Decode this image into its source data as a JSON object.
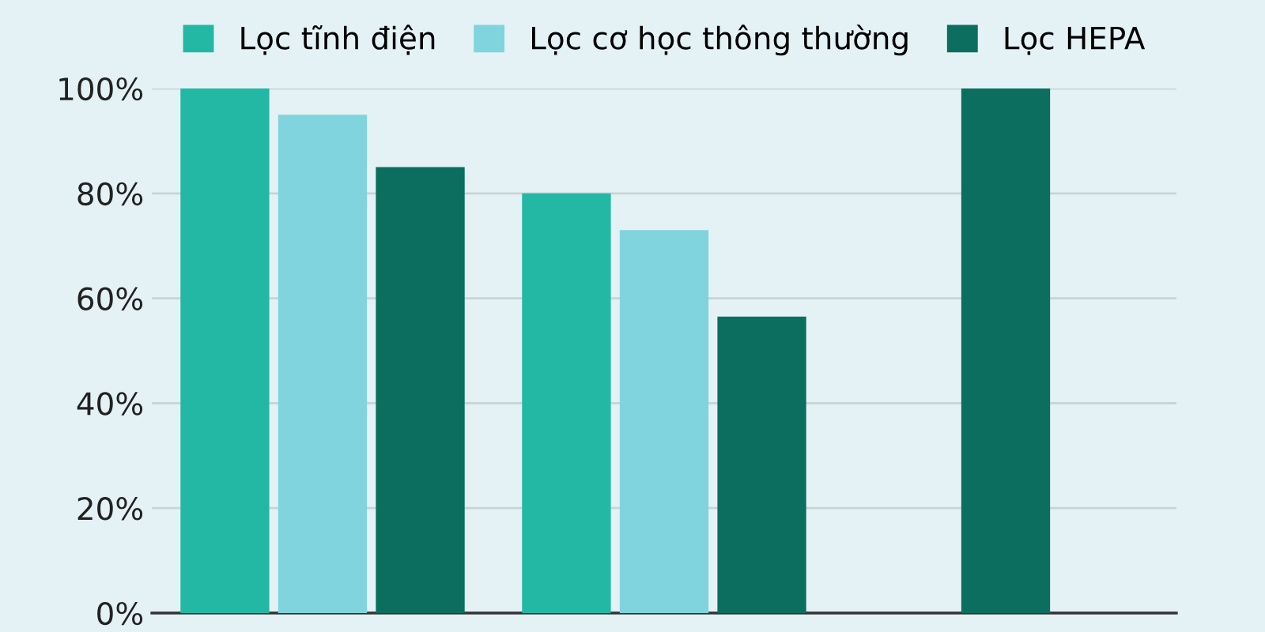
{
  "chart_data": {
    "type": "bar",
    "categories": [
      null,
      null,
      null
    ],
    "series": [
      {
        "name": "Lọc tĩnh điện",
        "color": "#22b8a4",
        "values": [
          100,
          80,
          null
        ]
      },
      {
        "name": "Lọc cơ học thông thường",
        "color": "#80d4dd",
        "values": [
          95,
          73,
          null
        ]
      },
      {
        "name": "Lọc HEPA",
        "color": "#0b6e5e",
        "values": [
          85,
          56.5,
          100
        ]
      }
    ],
    "ylim": [
      0,
      100
    ],
    "yticks": [
      {
        "value": 0,
        "label": "0%"
      },
      {
        "value": 20,
        "label": "20%"
      },
      {
        "value": 40,
        "label": "40%"
      },
      {
        "value": 60,
        "label": "60%"
      },
      {
        "value": 80,
        "label": "80%"
      },
      {
        "value": 100,
        "label": "100%"
      }
    ],
    "grid": "y",
    "legend": "top",
    "tick_labels": "y"
  }
}
